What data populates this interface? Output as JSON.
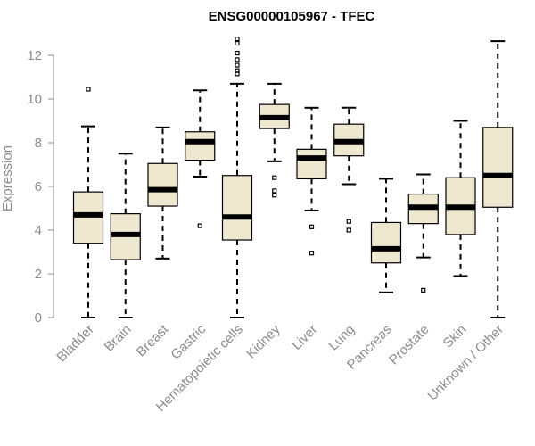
{
  "chart_data": {
    "type": "boxplot",
    "title": "ENSG00000105967 - TFEC",
    "xlabel": "",
    "ylabel": "Expression",
    "ylim": [
      0,
      12.8
    ],
    "yticks": [
      0,
      2,
      4,
      6,
      8,
      10,
      12
    ],
    "box_fill": "#efe8d1",
    "categories": [
      "Bladder",
      "Brain",
      "Breast",
      "Gastric",
      "Hematopoietic cells",
      "Kidney",
      "Liver",
      "Lung",
      "Pancreas",
      "Prostate",
      "Skin",
      "Unknown / Other"
    ],
    "boxes": [
      {
        "min": 0.0,
        "q1": 3.4,
        "median": 4.7,
        "q3": 5.75,
        "max": 8.75,
        "outliers": [
          10.45
        ]
      },
      {
        "min": 0.0,
        "q1": 2.65,
        "median": 3.8,
        "q3": 4.75,
        "max": 7.5,
        "outliers": []
      },
      {
        "min": 2.7,
        "q1": 5.1,
        "median": 5.85,
        "q3": 7.05,
        "max": 8.7,
        "outliers": []
      },
      {
        "min": 6.45,
        "q1": 7.2,
        "median": 8.05,
        "q3": 8.5,
        "max": 10.4,
        "outliers": [
          4.2
        ]
      },
      {
        "min": 0.0,
        "q1": 3.55,
        "median": 4.6,
        "q3": 6.5,
        "max": 10.7,
        "outliers": [
          11.15,
          11.3,
          11.55,
          11.8,
          12.1,
          12.55,
          12.75
        ]
      },
      {
        "min": 7.15,
        "q1": 8.65,
        "median": 9.15,
        "q3": 9.75,
        "max": 10.7,
        "outliers": [
          6.4,
          5.8,
          5.6
        ]
      },
      {
        "min": 4.9,
        "q1": 6.35,
        "median": 7.3,
        "q3": 7.7,
        "max": 9.6,
        "outliers": [
          4.15,
          2.95
        ]
      },
      {
        "min": 6.1,
        "q1": 7.4,
        "median": 8.05,
        "q3": 8.85,
        "max": 9.6,
        "outliers": [
          4.4,
          4.0
        ]
      },
      {
        "min": 1.15,
        "q1": 2.5,
        "median": 3.15,
        "q3": 4.35,
        "max": 6.35,
        "outliers": []
      },
      {
        "min": 2.75,
        "q1": 4.3,
        "median": 5.05,
        "q3": 5.65,
        "max": 6.55,
        "outliers": [
          1.25
        ]
      },
      {
        "min": 1.9,
        "q1": 3.8,
        "median": 5.05,
        "q3": 6.4,
        "max": 9.0,
        "outliers": []
      },
      {
        "min": 0.0,
        "q1": 5.05,
        "median": 6.5,
        "q3": 8.7,
        "max": 12.65,
        "outliers": []
      }
    ]
  }
}
